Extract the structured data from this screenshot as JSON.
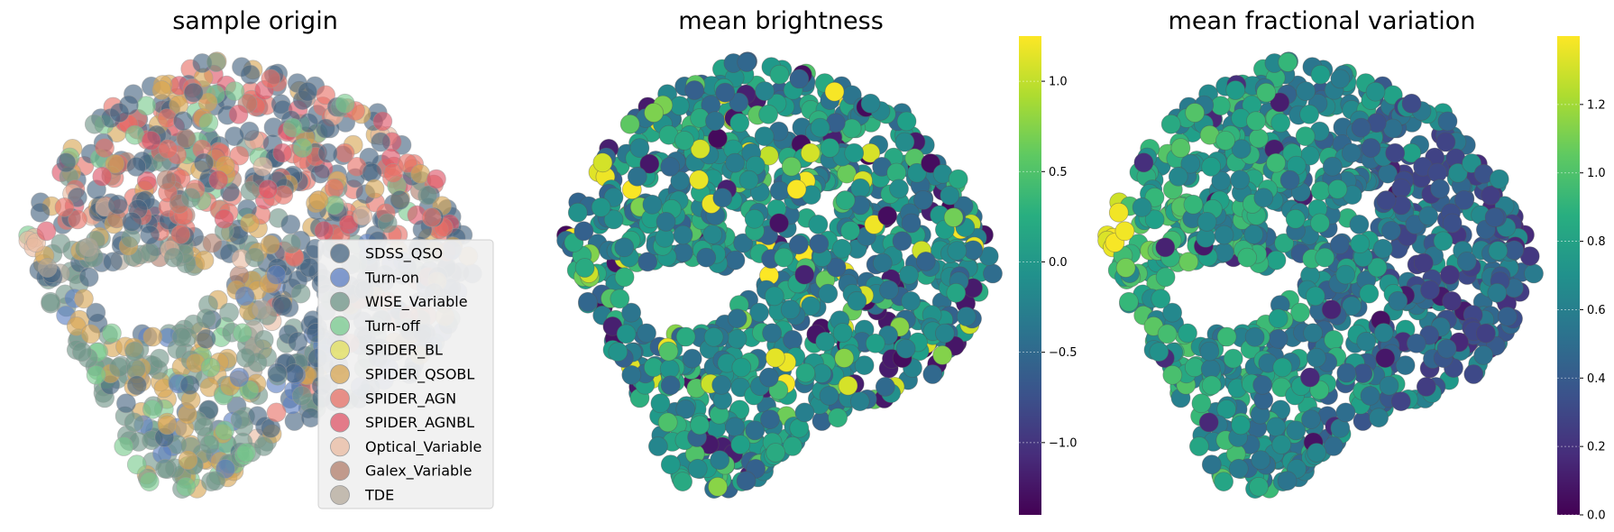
{
  "chart_data": [
    {
      "type": "scatter",
      "title": "sample origin",
      "grid": false,
      "axes_visible": false,
      "legend_position": "lower-right",
      "series": [
        {
          "name": "SDSS_QSO",
          "color": "#44637f"
        },
        {
          "name": "Turn-on",
          "color": "#5b7ec2"
        },
        {
          "name": "WISE_Variable",
          "color": "#6f9487"
        },
        {
          "name": "Turn-off",
          "color": "#77c98d"
        },
        {
          "name": "SPIDER_BL",
          "color": "#e1df5a"
        },
        {
          "name": "SPIDER_QSOBL",
          "color": "#d6a452"
        },
        {
          "name": "SPIDER_AGN",
          "color": "#e77065"
        },
        {
          "name": "SPIDER_AGNBL",
          "color": "#dd5365"
        },
        {
          "name": "Optical_Variable",
          "color": "#e8b9a0"
        },
        {
          "name": "Galex_Variable",
          "color": "#b07c6a"
        },
        {
          "name": "TDE",
          "color": "#b3a89a"
        }
      ]
    },
    {
      "type": "scatter",
      "title": "mean brightness",
      "grid": false,
      "axes_visible": false,
      "colormap": "viridis",
      "colorbar": {
        "range": [
          -1.4,
          1.25
        ],
        "ticks": [
          1.0,
          0.5,
          0.0,
          -0.5,
          -1.0
        ],
        "tick_labels": [
          "1.0",
          "0.5",
          "0.0",
          "−0.5",
          "−1.0"
        ]
      }
    },
    {
      "type": "scatter",
      "title": "mean fractional variation",
      "grid": false,
      "axes_visible": false,
      "colormap": "viridis",
      "colorbar": {
        "range": [
          0.0,
          1.4
        ],
        "ticks": [
          1.2,
          1.0,
          0.8,
          0.6,
          0.4,
          0.2,
          0.0
        ],
        "tick_labels": [
          "1.2",
          "1.0",
          "0.8",
          "0.6",
          "0.4",
          "0.2",
          "0.0"
        ]
      }
    }
  ]
}
